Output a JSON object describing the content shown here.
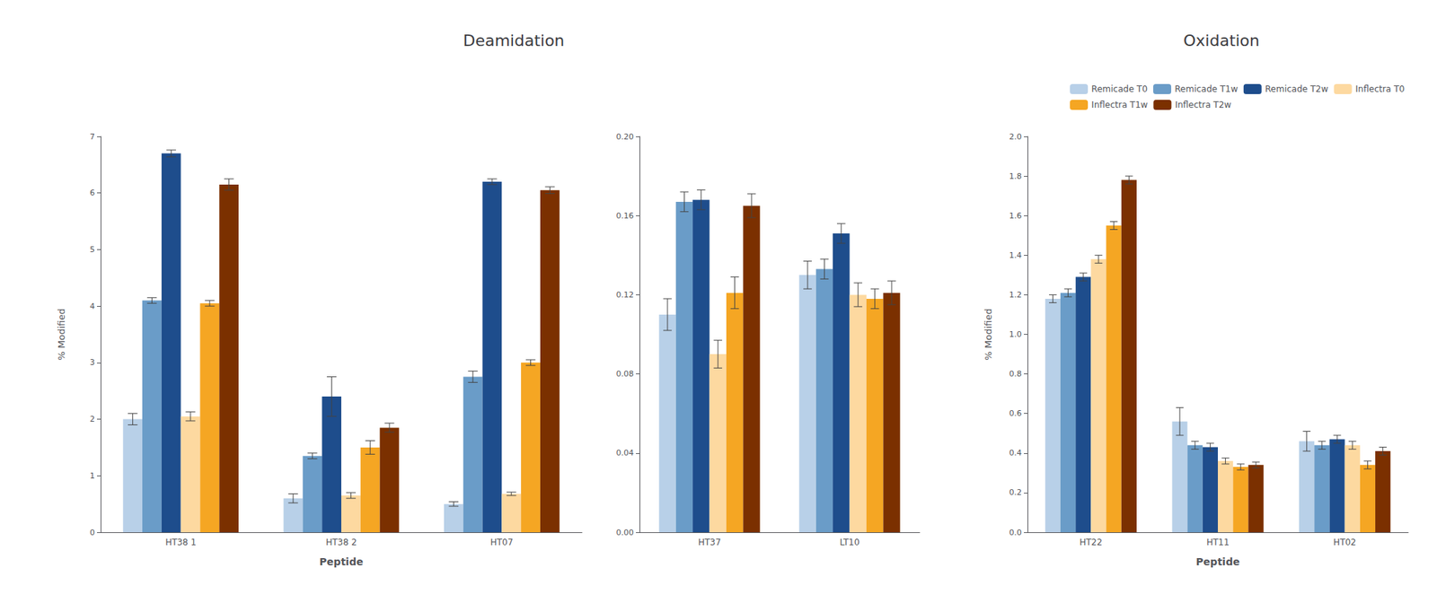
{
  "chart_data": [
    {
      "type": "bar",
      "title": "Deamidation",
      "xlabel": "Peptide",
      "ylabel": "% Modified",
      "categories": [
        "HT38 1",
        "HT38 2",
        "HT07"
      ],
      "series": [
        {
          "name": "Remicade T0",
          "color": "#b8d0e8",
          "values": [
            2.0,
            0.6,
            0.5
          ],
          "errors": [
            0.1,
            0.08,
            0.04
          ]
        },
        {
          "name": "Remicade T1w",
          "color": "#6a9cc8",
          "values": [
            4.1,
            1.35,
            2.75
          ],
          "errors": [
            0.05,
            0.05,
            0.1
          ]
        },
        {
          "name": "Remicade T2w",
          "color": "#1e4d8c",
          "values": [
            6.7,
            2.4,
            6.2
          ],
          "errors": [
            0.06,
            0.35,
            0.05
          ]
        },
        {
          "name": "Inflectra T0",
          "color": "#fdd9a0",
          "values": [
            2.05,
            0.65,
            0.68
          ],
          "errors": [
            0.08,
            0.05,
            0.03
          ]
        },
        {
          "name": "Inflectra T1w",
          "color": "#f5a623",
          "values": [
            4.05,
            1.5,
            3.0
          ],
          "errors": [
            0.05,
            0.12,
            0.05
          ]
        },
        {
          "name": "Inflectra T2w",
          "color": "#7b3000",
          "values": [
            6.15,
            1.85,
            6.05
          ],
          "errors": [
            0.1,
            0.08,
            0.06
          ]
        }
      ],
      "ylim": [
        0,
        7
      ],
      "yticks": [
        0,
        1,
        2,
        3,
        4,
        5,
        6,
        7
      ],
      "grid": false
    },
    {
      "type": "bar",
      "categories": [
        "HT37",
        "LT10"
      ],
      "series": [
        {
          "name": "Remicade T0",
          "color": "#b8d0e8",
          "values": [
            0.11,
            0.13
          ],
          "errors": [
            0.008,
            0.007
          ]
        },
        {
          "name": "Remicade T1w",
          "color": "#6a9cc8",
          "values": [
            0.167,
            0.133
          ],
          "errors": [
            0.005,
            0.005
          ]
        },
        {
          "name": "Remicade T2w",
          "color": "#1e4d8c",
          "values": [
            0.168,
            0.151
          ],
          "errors": [
            0.005,
            0.005
          ]
        },
        {
          "name": "Inflectra T0",
          "color": "#fdd9a0",
          "values": [
            0.09,
            0.12
          ],
          "errors": [
            0.007,
            0.006
          ]
        },
        {
          "name": "Inflectra T1w",
          "color": "#f5a623",
          "values": [
            0.121,
            0.118
          ],
          "errors": [
            0.008,
            0.005
          ]
        },
        {
          "name": "Inflectra T2w",
          "color": "#7b3000",
          "values": [
            0.165,
            0.121
          ],
          "errors": [
            0.006,
            0.006
          ]
        }
      ],
      "ylim": [
        0,
        0.2
      ],
      "yticks": [
        {
          "value": 0,
          "label": "0.00"
        },
        0.04,
        0.08,
        0.12,
        0.16,
        {
          "value": 0.2,
          "label": "0.20"
        }
      ],
      "grid": false
    },
    {
      "type": "bar",
      "title": "Oxidation",
      "xlabel": "Peptide",
      "ylabel": "% Modified",
      "categories": [
        "HT22",
        "HT11",
        "HT02"
      ],
      "series": [
        {
          "name": "Remicade T0",
          "color": "#b8d0e8",
          "values": [
            1.18,
            0.56,
            0.46
          ],
          "errors": [
            0.02,
            0.07,
            0.05
          ]
        },
        {
          "name": "Remicade T1w",
          "color": "#6a9cc8",
          "values": [
            1.21,
            0.44,
            0.44
          ],
          "errors": [
            0.02,
            0.02,
            0.02
          ]
        },
        {
          "name": "Remicade T2w",
          "color": "#1e4d8c",
          "values": [
            1.29,
            0.43,
            0.47
          ],
          "errors": [
            0.02,
            0.02,
            0.02
          ]
        },
        {
          "name": "Inflectra T0",
          "color": "#fdd9a0",
          "values": [
            1.38,
            0.36,
            0.44
          ],
          "errors": [
            0.02,
            0.015,
            0.02
          ]
        },
        {
          "name": "Inflectra T1w",
          "color": "#f5a623",
          "values": [
            1.55,
            0.33,
            0.34
          ],
          "errors": [
            0.02,
            0.015,
            0.02
          ]
        },
        {
          "name": "Inflectra T2w",
          "color": "#7b3000",
          "values": [
            1.78,
            0.34,
            0.41
          ],
          "errors": [
            0.02,
            0.015,
            0.02
          ]
        }
      ],
      "ylim": [
        0,
        2
      ],
      "yticks": [
        {
          "value": 0,
          "label": "0.0"
        },
        0.2,
        0.4,
        0.6,
        0.8,
        {
          "value": 1,
          "label": "1.0"
        },
        1.2,
        1.4,
        1.6,
        1.8,
        {
          "value": 2,
          "label": "2.0"
        }
      ],
      "grid": false,
      "legend": "upper right"
    }
  ]
}
